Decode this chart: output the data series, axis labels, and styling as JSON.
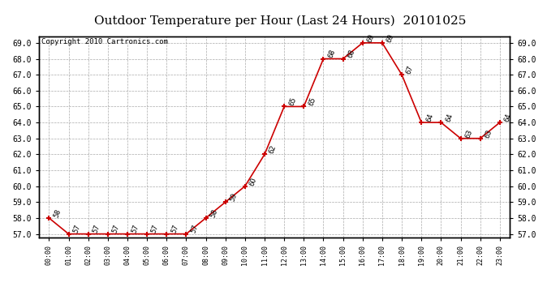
{
  "title": "Outdoor Temperature per Hour (Last 24 Hours)  20101025",
  "copyright": "Copyright 2010 Cartronics.com",
  "hours": [
    "00:00",
    "01:00",
    "02:00",
    "03:00",
    "04:00",
    "05:00",
    "06:00",
    "07:00",
    "08:00",
    "09:00",
    "10:00",
    "11:00",
    "12:00",
    "13:00",
    "14:00",
    "15:00",
    "16:00",
    "17:00",
    "18:00",
    "19:00",
    "20:00",
    "21:00",
    "22:00",
    "23:00"
  ],
  "temp_values": [
    58,
    57,
    57,
    57,
    57,
    57,
    57,
    57,
    58,
    59,
    60,
    62,
    65,
    65,
    68,
    68,
    69,
    69,
    67,
    64,
    64,
    63,
    63,
    64
  ],
  "ylim_min": 57.0,
  "ylim_max": 69.0,
  "line_color": "#cc0000",
  "marker_color": "#cc0000",
  "bg_color": "#ffffff",
  "plot_bg_color": "#ffffff",
  "grid_color": "#aaaaaa",
  "title_fontsize": 11,
  "copyright_fontsize": 6.5,
  "label_fontsize": 6
}
